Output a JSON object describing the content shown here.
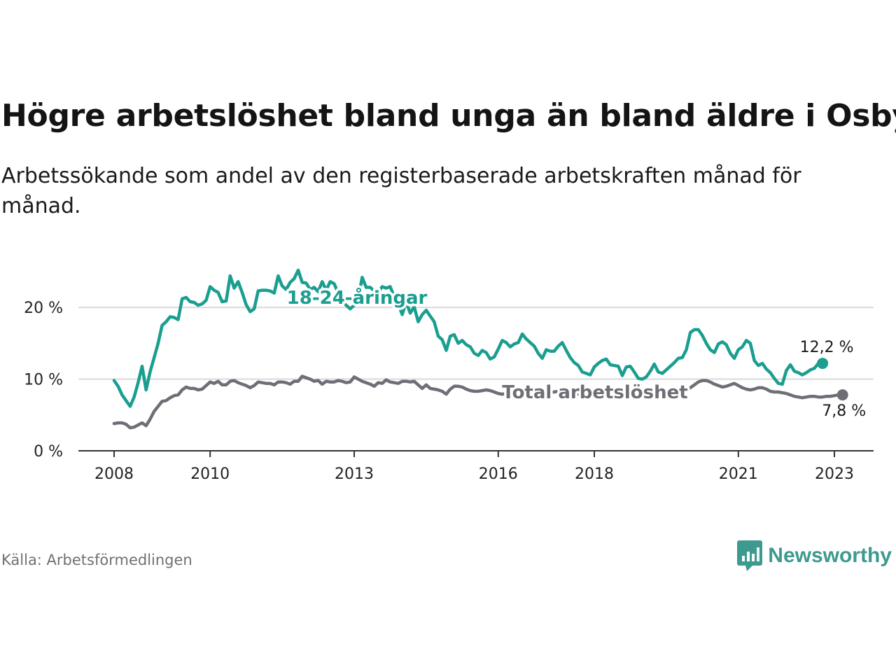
{
  "title": "Högre arbetslöshet bland unga än bland äldre i Osby",
  "subtitle": "Arbetssökande som andel av den registerbaserade arbetskraften månad för månad.",
  "source": "Källa: Arbetsförmedlingen",
  "brand": "Newsworthy",
  "colors": {
    "youth": "#1a9e8f",
    "total": "#6e6e76",
    "grid": "#d9d9d9",
    "axis": "#333333",
    "brand": "#3d9a8f"
  },
  "chart_data": {
    "type": "line",
    "x_start": 2008.0,
    "x_step": 0.08333,
    "xlim": [
      2007.3,
      2024.0
    ],
    "ylim": [
      0,
      25
    ],
    "y_ticks": [
      0,
      10,
      20
    ],
    "y_tick_labels": [
      "0 %",
      "10 %",
      "20 %"
    ],
    "x_ticks": [
      2008,
      2010,
      2013,
      2016,
      2018,
      2021,
      2023
    ],
    "x_tick_labels": [
      "2008",
      "2010",
      "2013",
      "2016",
      "2018",
      "2021",
      "2023"
    ],
    "series": [
      {
        "name": "18-24-åringar",
        "label": "18-24-åringar",
        "end_label": "12,2 %",
        "values": [
          9.8,
          9.0,
          7.8,
          7.0,
          6.2,
          7.5,
          9.5,
          11.8,
          8.5,
          11.0,
          13.0,
          15.0,
          17.5,
          18.0,
          18.7,
          18.6,
          18.3,
          21.2,
          21.4,
          20.8,
          20.7,
          20.3,
          20.5,
          21.0,
          22.9,
          22.4,
          22.1,
          20.8,
          20.9,
          24.4,
          22.7,
          23.6,
          22.1,
          20.4,
          19.4,
          19.8,
          22.3,
          22.4,
          22.4,
          22.3,
          22.0,
          24.4,
          23.0,
          22.5,
          23.5,
          24.0,
          25.2,
          23.5,
          23.4,
          22.5,
          22.8,
          22.2,
          23.6,
          22.4,
          23.6,
          23.3,
          22.0,
          20.8,
          20.3,
          19.8,
          20.3,
          21.2,
          24.2,
          22.8,
          22.8,
          22.3,
          22.1,
          22.9,
          22.7,
          22.9,
          21.5,
          20.5,
          19.0,
          20.8,
          19.2,
          20.1,
          18.0,
          19.0,
          19.6,
          18.8,
          18.0,
          16.0,
          15.5,
          14.0,
          16.0,
          16.2,
          15.0,
          15.4,
          14.8,
          14.5,
          13.6,
          13.3,
          14.0,
          13.7,
          12.8,
          13.1,
          14.2,
          15.4,
          15.1,
          14.5,
          14.9,
          15.1,
          16.3,
          15.6,
          15.1,
          14.6,
          13.6,
          12.9,
          14.1,
          13.9,
          13.9,
          14.6,
          15.1,
          14.0,
          13.0,
          12.3,
          11.9,
          11.0,
          10.8,
          10.6,
          11.7,
          12.2,
          12.6,
          12.8,
          12.0,
          11.9,
          11.8,
          10.5,
          11.7,
          11.8,
          11.0,
          10.1,
          10.0,
          10.3,
          11.1,
          12.1,
          11.0,
          10.8,
          11.3,
          11.8,
          12.3,
          12.9,
          13.0,
          14.1,
          16.5,
          16.9,
          16.9,
          16.1,
          15.0,
          14.1,
          13.7,
          14.9,
          15.2,
          14.8,
          13.6,
          12.9,
          14.1,
          14.5,
          15.4,
          15.0,
          12.6,
          11.9,
          12.2,
          11.4,
          10.9,
          10.1,
          9.4,
          9.3,
          11.2,
          12.0,
          11.1,
          10.9,
          10.6,
          10.9,
          11.3,
          11.5,
          12.2
        ]
      },
      {
        "name": "Total arbetslöshet",
        "label": "Total arbetslöshet",
        "end_label": "7,8 %",
        "values": [
          3.8,
          3.9,
          3.9,
          3.7,
          3.2,
          3.3,
          3.6,
          3.9,
          3.5,
          4.4,
          5.5,
          6.2,
          6.9,
          7.0,
          7.4,
          7.7,
          7.8,
          8.5,
          8.9,
          8.7,
          8.7,
          8.5,
          8.6,
          9.1,
          9.6,
          9.4,
          9.7,
          9.2,
          9.2,
          9.7,
          9.8,
          9.5,
          9.3,
          9.1,
          8.8,
          9.1,
          9.6,
          9.5,
          9.4,
          9.4,
          9.2,
          9.6,
          9.6,
          9.5,
          9.3,
          9.7,
          9.7,
          10.4,
          10.2,
          10.0,
          9.7,
          9.8,
          9.3,
          9.7,
          9.6,
          9.6,
          9.8,
          9.7,
          9.5,
          9.6,
          10.3,
          10.0,
          9.7,
          9.5,
          9.3,
          9.0,
          9.5,
          9.4,
          9.9,
          9.6,
          9.5,
          9.4,
          9.7,
          9.7,
          9.6,
          9.7,
          9.2,
          8.7,
          9.2,
          8.7,
          8.6,
          8.5,
          8.3,
          7.9,
          8.6,
          9.0,
          9.0,
          8.9,
          8.6,
          8.4,
          8.3,
          8.3,
          8.4,
          8.5,
          8.4,
          8.2,
          8.0,
          7.9,
          8.0,
          8.0,
          8.1,
          8.3,
          8.2,
          8.2,
          8.1,
          8.0,
          8.0,
          8.0,
          8.1,
          8.2,
          8.2,
          8.3,
          8.2,
          8.0,
          7.9,
          7.8,
          7.9,
          7.9,
          7.8,
          7.8,
          7.7,
          7.8,
          7.9,
          7.9,
          8.0,
          7.9,
          7.8,
          7.8,
          7.7,
          7.8,
          7.9,
          7.9,
          7.8,
          7.8,
          7.9,
          8.0,
          8.1,
          8.1,
          8.0,
          8.0,
          8.1,
          8.2,
          8.3,
          8.5,
          8.8,
          9.2,
          9.6,
          9.8,
          9.8,
          9.6,
          9.3,
          9.1,
          8.9,
          9.0,
          9.2,
          9.4,
          9.1,
          8.8,
          8.6,
          8.5,
          8.6,
          8.8,
          8.8,
          8.6,
          8.3,
          8.2,
          8.2,
          8.1,
          8.0,
          7.8,
          7.6,
          7.5,
          7.4,
          7.5,
          7.6,
          7.6,
          7.5,
          7.5,
          7.6,
          7.6,
          7.7,
          7.8
        ]
      }
    ]
  }
}
